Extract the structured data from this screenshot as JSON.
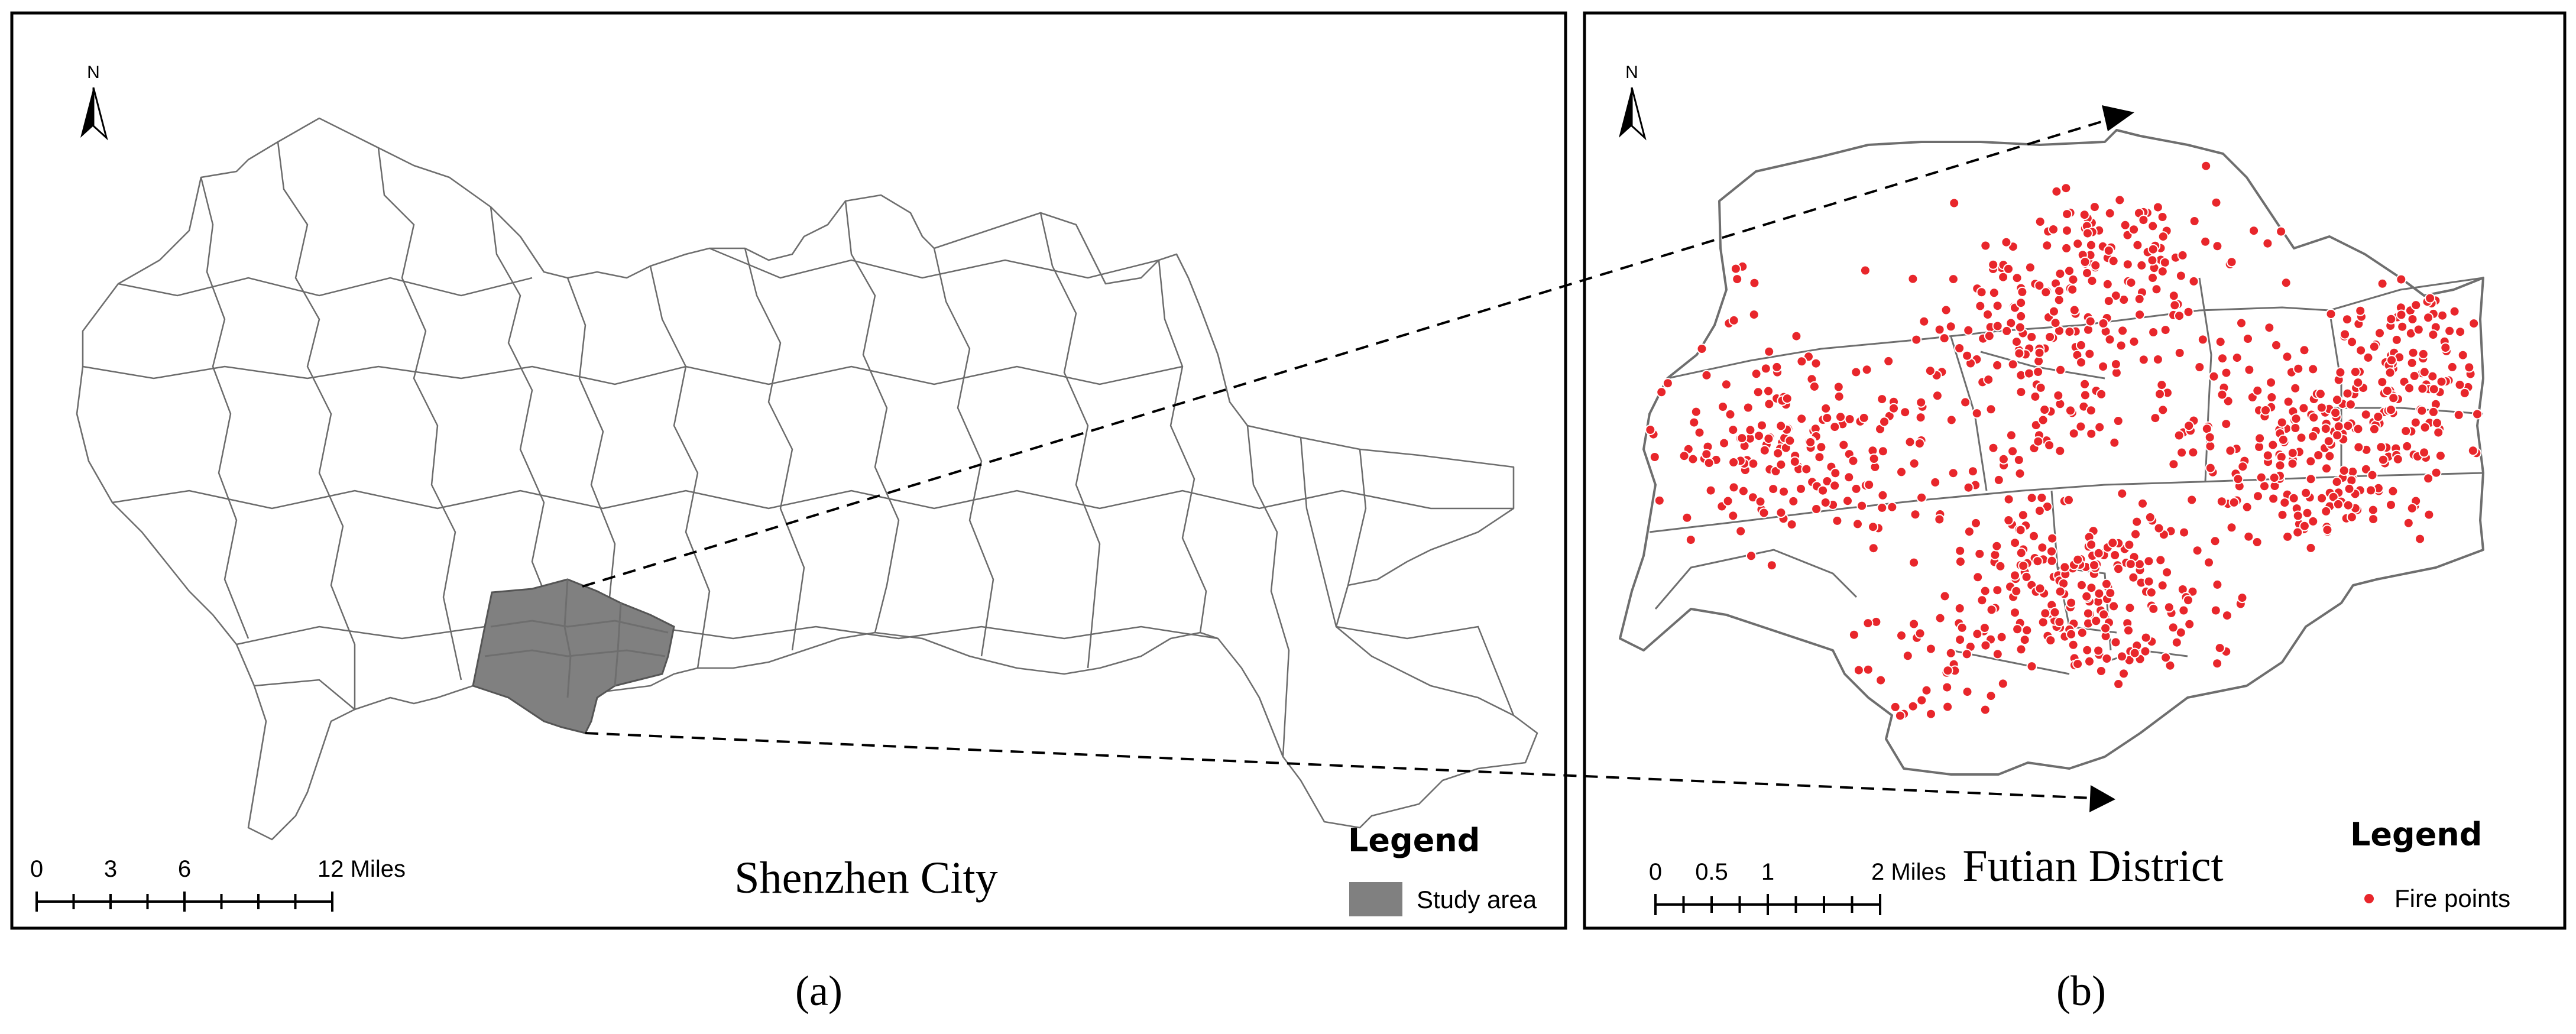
{
  "panel_a": {
    "map_title": "Shenzhen City",
    "north_label": "N",
    "scale_bar": {
      "labels": [
        "0",
        "3",
        "6",
        "12 Miles"
      ],
      "label_values": [
        0,
        3,
        6,
        12
      ]
    },
    "legend": {
      "title": "Legend",
      "items": [
        {
          "label": "Study area",
          "color": "#808080"
        }
      ]
    },
    "caption": "(a)"
  },
  "panel_b": {
    "map_title": "Futian District",
    "north_label": "N",
    "scale_bar": {
      "labels": [
        "0",
        "0.5",
        "1",
        "2 Miles"
      ],
      "label_values": [
        0,
        0.5,
        1,
        2
      ]
    },
    "legend": {
      "title": "Legend",
      "items": [
        {
          "label": "Fire points",
          "color": "#e8262b"
        }
      ]
    },
    "caption": "(b)"
  },
  "colors": {
    "boundary": "#6e6e6e",
    "study_area": "#808080",
    "fire_point": "#e8262b",
    "frame": "#000000"
  },
  "icons": [
    "north-arrow-icon",
    "arrowhead-icon"
  ]
}
